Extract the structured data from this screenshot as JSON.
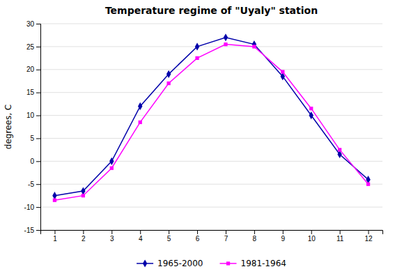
{
  "chart_data": {
    "type": "line",
    "title": "Temperature regime of \"Uyaly\" station",
    "ylabel": "degrees, C",
    "x": [
      1,
      2,
      3,
      4,
      5,
      6,
      7,
      8,
      9,
      10,
      11,
      12
    ],
    "series": [
      {
        "name": "1965-2000",
        "color": "#0000aa",
        "marker": "diamond",
        "values": [
          -7.5,
          -6.5,
          0.0,
          12.0,
          19.0,
          25.0,
          27.0,
          25.5,
          18.5,
          10.0,
          1.5,
          -4.0
        ]
      },
      {
        "name": "1981-1964",
        "color": "#ff00ff",
        "marker": "square",
        "values": [
          -8.5,
          -7.5,
          -1.5,
          8.5,
          17.0,
          22.5,
          25.5,
          25.0,
          19.5,
          11.5,
          2.5,
          -5.0
        ]
      }
    ],
    "xlim": [
      0.5,
      12.5
    ],
    "xticks": [
      1,
      2,
      3,
      4,
      5,
      6,
      7,
      8,
      9,
      10,
      11,
      12
    ],
    "ylim": [
      -15,
      30
    ],
    "yticks": [
      -15,
      -10,
      -5,
      0,
      5,
      10,
      15,
      20,
      25,
      30
    ],
    "grid": true,
    "legend": "bottom"
  }
}
